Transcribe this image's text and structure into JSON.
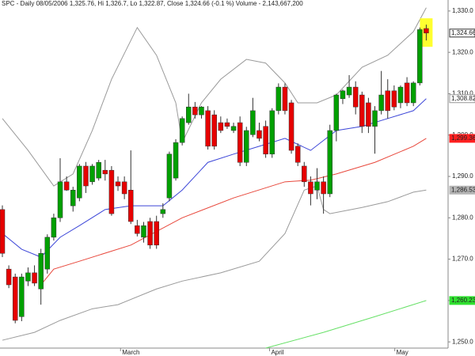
{
  "chart_data": {
    "type": "candlestick",
    "title": "SPC - Daily 08/05/2006 1,325.76, Hi 1,326.7, Lo 1,322.87, Close 1,324.66 (-0.1 %) Volume - 2,143,667,200",
    "up_color": "#00a000",
    "down_color": "#e60000",
    "ohlc": [
      [
        1282.0,
        1283.0,
        1270.5,
        1271.4
      ],
      [
        1267.6,
        1268.5,
        1263.0,
        1263.8
      ],
      [
        1265.7,
        1266.5,
        1254.5,
        1255.2
      ],
      [
        1256.1,
        1266.5,
        1255.0,
        1265.7
      ],
      [
        1264.7,
        1268.0,
        1263.5,
        1266.7
      ],
      [
        1266.7,
        1268.5,
        1263.5,
        1264.2
      ],
      [
        1262.8,
        1272.5,
        1259.0,
        1271.4
      ],
      [
        1267.6,
        1276.0,
        1266.5,
        1275.3
      ],
      [
        1275.3,
        1281.0,
        1274.5,
        1280.0
      ],
      [
        1280.0,
        1294.4,
        1279.0,
        1288.7
      ],
      [
        1288.7,
        1290.0,
        1286.5,
        1286.7
      ],
      [
        1282.9,
        1287.5,
        1281.5,
        1286.7
      ],
      [
        1284.8,
        1293.0,
        1284.0,
        1292.5
      ],
      [
        1292.5,
        1293.5,
        1286.0,
        1287.7
      ],
      [
        1288.7,
        1293.0,
        1288.0,
        1292.5
      ],
      [
        1289.6,
        1294.0,
        1289.0,
        1293.4
      ],
      [
        1291.5,
        1294.0,
        1289.0,
        1290.6
      ],
      [
        1291.5,
        1292.5,
        1280.5,
        1281.0
      ],
      [
        1288.7,
        1290.0,
        1286.5,
        1287.7
      ],
      [
        1288.7,
        1290.0,
        1284.5,
        1285.8
      ],
      [
        1286.7,
        1296.3,
        1278.5,
        1279.1
      ],
      [
        1278.1,
        1279.5,
        1275.5,
        1276.2
      ],
      [
        1275.3,
        1279.0,
        1274.0,
        1278.1
      ],
      [
        1279.1,
        1280.0,
        1272.5,
        1273.4
      ],
      [
        1279.1,
        1280.5,
        1272.5,
        1273.4
      ],
      [
        1281.0,
        1283.5,
        1280.0,
        1282.0
      ],
      [
        1284.8,
        1296.0,
        1284.0,
        1295.4
      ],
      [
        1289.6,
        1299.0,
        1289.0,
        1298.2
      ],
      [
        1298.2,
        1304.5,
        1297.5,
        1304.0
      ],
      [
        1303.0,
        1310.0,
        1302.5,
        1306.8
      ],
      [
        1306.8,
        1308.0,
        1304.0,
        1304.9
      ],
      [
        1304.9,
        1307.0,
        1304.0,
        1306.8
      ],
      [
        1305.9,
        1307.0,
        1296.5,
        1297.3
      ],
      [
        1304.9,
        1306.0,
        1296.5,
        1297.3
      ],
      [
        1303.0,
        1304.5,
        1300.5,
        1301.1
      ],
      [
        1303.0,
        1304.0,
        1301.5,
        1302.1
      ],
      [
        1301.1,
        1303.0,
        1300.5,
        1302.1
      ],
      [
        1303.0,
        1304.5,
        1292.5,
        1293.4
      ],
      [
        1293.4,
        1302.0,
        1292.5,
        1301.1
      ],
      [
        1300.1,
        1309.0,
        1299.5,
        1305.9
      ],
      [
        1301.1,
        1303.0,
        1298.5,
        1299.2
      ],
      [
        1302.1,
        1303.5,
        1294.5,
        1295.4
      ],
      [
        1295.4,
        1306.5,
        1294.5,
        1305.9
      ],
      [
        1305.9,
        1312.5,
        1305.0,
        1311.6
      ],
      [
        1311.6,
        1312.5,
        1305.0,
        1305.9
      ],
      [
        1307.8,
        1308.5,
        1295.5,
        1296.3
      ],
      [
        1297.3,
        1298.0,
        1292.5,
        1293.4
      ],
      [
        1292.5,
        1293.5,
        1287.5,
        1288.7
      ],
      [
        1288.7,
        1290.0,
        1283.0,
        1285.8
      ],
      [
        1286.7,
        1292.0,
        1284.5,
        1288.7
      ],
      [
        1288.7,
        1290.0,
        1281.0,
        1285.8
      ],
      [
        1285.8,
        1302.5,
        1285.0,
        1301.1
      ],
      [
        1301.1,
        1310.0,
        1298.5,
        1309.7
      ],
      [
        1308.8,
        1311.0,
        1307.5,
        1310.7
      ],
      [
        1309.7,
        1314.5,
        1309.0,
        1311.6
      ],
      [
        1311.6,
        1313.0,
        1305.0,
        1306.8
      ],
      [
        1309.7,
        1310.5,
        1300.5,
        1302.1
      ],
      [
        1307.8,
        1309.0,
        1300.5,
        1302.1
      ],
      [
        1302.1,
        1307.0,
        1295.5,
        1305.9
      ],
      [
        1305.9,
        1315.5,
        1305.0,
        1309.7
      ],
      [
        1310.7,
        1313.5,
        1304.0,
        1305.9
      ],
      [
        1310.7,
        1312.0,
        1306.0,
        1306.8
      ],
      [
        1307.8,
        1312.0,
        1306.5,
        1311.6
      ],
      [
        1312.6,
        1314.0,
        1307.0,
        1307.8
      ],
      [
        1307.8,
        1313.0,
        1307.0,
        1312.6
      ],
      [
        1312.6,
        1326.0,
        1312.0,
        1325.5
      ],
      [
        1325.76,
        1326.7,
        1322.87,
        1324.66
      ]
    ],
    "close_label": "1,324.66",
    "lines": [
      {
        "color": "#9a9a9a",
        "x": [
          0,
          4,
          8,
          11,
          14,
          17,
          21,
          24,
          27,
          28,
          31,
          34,
          38,
          41,
          44,
          46,
          49,
          52,
          56,
          60,
          64,
          66
        ],
        "values": [
          1304.0,
          1296.3,
          1287.7,
          1290.6,
          1301.1,
          1313.5,
          1326.0,
          1319.3,
          1307.8,
          1298.2,
          1307.8,
          1313.5,
          1318.3,
          1317.4,
          1312.6,
          1307.8,
          1307.8,
          1309.7,
          1316.4,
          1319.3,
          1325.0,
          1330.8
        ]
      },
      {
        "color": "#9a9a9a",
        "x": [
          0,
          5,
          9,
          14,
          18,
          24,
          28,
          34,
          40,
          44,
          47,
          49,
          50,
          51,
          56,
          60,
          64,
          66
        ],
        "values": [
          1250.4,
          1252.3,
          1255.2,
          1258.0,
          1259.0,
          1262.8,
          1264.7,
          1266.7,
          1269.5,
          1276.2,
          1286.7,
          1287.7,
          1282.0,
          1281.0,
          1282.5,
          1283.9,
          1286.2,
          1286.7
        ],
        "last_label": "1,286.53",
        "label_fill": "#b4b4b4"
      },
      {
        "color": "#e8483c",
        "x": [
          6,
          8,
          12,
          20,
          28,
          36,
          44,
          48,
          52,
          58,
          64,
          66
        ],
        "values": [
          1263.8,
          1267.6,
          1269.5,
          1273.4,
          1280.0,
          1284.8,
          1288.7,
          1289.1,
          1290.6,
          1293.4,
          1297.3,
          1299.2
        ],
        "last_label": "1,299.36",
        "label_fill": "#ff2020"
      },
      {
        "color": "#3c46d8",
        "x": [
          0,
          3,
          6,
          9,
          12,
          16,
          20,
          25,
          28,
          32,
          36,
          40,
          44,
          48,
          52,
          56,
          60,
          64,
          66
        ],
        "values": [
          1276.2,
          1272.4,
          1270.5,
          1275.3,
          1278.1,
          1282.0,
          1282.9,
          1282.9,
          1286.7,
          1293.4,
          1295.4,
          1297.3,
          1299.2,
          1296.3,
          1301.1,
          1302.1,
          1304.0,
          1305.9,
          1308.8
        ],
        "last_label": "1,308.82",
        "label_fill": "#ffffff",
        "label_color": "#2030d0"
      },
      {
        "color": "#66e066",
        "x": [
          41,
          50,
          58,
          66
        ],
        "values": [
          1248.5,
          1252.3,
          1256.1,
          1260.0
        ],
        "last_label": "1,260.23",
        "label_fill": "#30e030"
      }
    ],
    "ylim": [
      1248.5,
      1331.7
    ],
    "yticks": [
      {
        "value": 1330,
        "label": "1,330.0"
      },
      {
        "value": 1320,
        "label": "1,320.0"
      },
      {
        "value": 1310,
        "label": "1,310.0"
      },
      {
        "value": 1300,
        "label": "1,300.0"
      },
      {
        "value": 1290,
        "label": "1,290.0"
      },
      {
        "value": 1280,
        "label": "1,280.0"
      },
      {
        "value": 1270,
        "label": "1,270.0"
      },
      {
        "value": 1260,
        "label": "1,260.0"
      },
      {
        "value": 1250,
        "label": "1,250.0"
      }
    ],
    "xlim": [
      -0.37,
      69.4
    ],
    "xticks": [
      {
        "value": 18.4,
        "label": "March"
      },
      {
        "value": 41.6,
        "label": "April"
      },
      {
        "value": 61.1,
        "label": "May"
      }
    ]
  }
}
